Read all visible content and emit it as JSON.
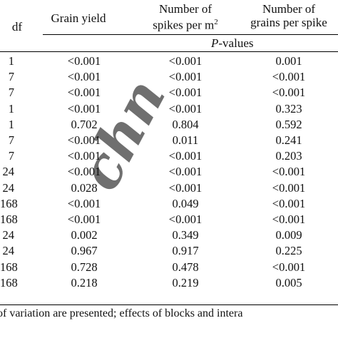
{
  "headers": {
    "df": "df",
    "grain_yield": "Grain yield",
    "spikes_line1": "Number of",
    "spikes_line2": "spikes per m",
    "spikes_sup": "2",
    "grains_line1": "Number of",
    "grains_line2": "grains per spike",
    "pvalues_italic": "P",
    "pvalues_rest": "-values"
  },
  "rows": [
    {
      "df": "1",
      "grain": "<0.001",
      "spikes": "<0.001",
      "grains": "0.001"
    },
    {
      "df": "7",
      "grain": "<0.001",
      "spikes": "<0.001",
      "grains": "<0.001"
    },
    {
      "df": "7",
      "grain": "<0.001",
      "spikes": "<0.001",
      "grains": "<0.001"
    },
    {
      "df": "1",
      "grain": "<0.001",
      "spikes": "<0.001",
      "grains": "0.323"
    },
    {
      "df": "1",
      "grain": "0.702",
      "spikes": "0.804",
      "grains": "0.592"
    },
    {
      "df": "7",
      "grain": "<0.001",
      "spikes": "0.011",
      "grains": "0.241"
    },
    {
      "df": "7",
      "grain": "<0.001",
      "spikes": "<0.001",
      "grains": "0.203"
    },
    {
      "df": "24",
      "grain": "<0.001",
      "spikes": "<0.001",
      "grains": "<0.001"
    },
    {
      "df": "24",
      "grain": "0.028",
      "spikes": "<0.001",
      "grains": "<0.001"
    },
    {
      "df": "168",
      "grain": "<0.001",
      "spikes": "0.049",
      "grains": "<0.001"
    },
    {
      "df": "168",
      "grain": "<0.001",
      "spikes": "<0.001",
      "grains": "<0.001"
    },
    {
      "df": "24",
      "grain": "0.002",
      "spikes": "0.349",
      "grains": "0.009"
    },
    {
      "df": "24",
      "grain": "0.967",
      "spikes": "0.917",
      "grains": "0.225"
    },
    {
      "df": "168",
      "grain": "0.728",
      "spikes": "0.478",
      "grains": "<0.001"
    },
    {
      "df": "168",
      "grain": "0.218",
      "spikes": "0.219",
      "grains": "0.005"
    }
  ],
  "footnote": "of variation are presented; effects of blocks and intera",
  "watermark": "chn"
}
